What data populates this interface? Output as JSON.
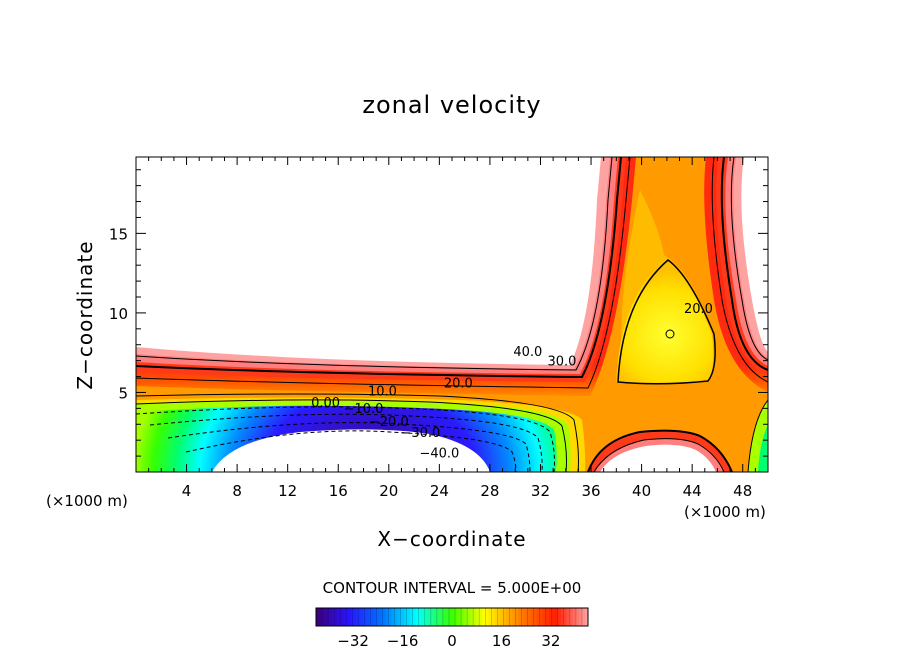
{
  "chart_data": {
    "type": "contour",
    "title": "zonal velocity",
    "xlabel": "X−coordinate",
    "ylabel": "Z−coordinate",
    "x_unit_left": "(×1000 m)",
    "x_unit_right": "(×1000 m)",
    "xlim": [
      0,
      50
    ],
    "ylim": [
      0,
      19.8
    ],
    "xticks": [
      4,
      8,
      12,
      16,
      20,
      24,
      28,
      32,
      36,
      40,
      44,
      48
    ],
    "yticks": [
      5,
      10,
      15
    ],
    "contour_interval_text": "CONTOUR INTERVAL = 5.000E+00",
    "contour_labels": [
      {
        "text": "40.0",
        "x": 31,
        "y": 7.3
      },
      {
        "text": "30.0",
        "x": 33.7,
        "y": 6.7
      },
      {
        "text": "20.0",
        "x": 25.5,
        "y": 5.3
      },
      {
        "text": "10.0",
        "x": 19.5,
        "y": 4.8
      },
      {
        "text": "0.00",
        "x": 15,
        "y": 4.1
      },
      {
        "text": "−10.0",
        "x": 18,
        "y": 3.7
      },
      {
        "text": "−20.0",
        "x": 20,
        "y": 2.9
      },
      {
        "text": "−30.0",
        "x": 22.5,
        "y": 2.2
      },
      {
        "text": "−40.0",
        "x": 24,
        "y": 0.9
      },
      {
        "text": "20.0",
        "x": 44.5,
        "y": 10
      }
    ],
    "colorbar": {
      "range": [
        -44,
        44
      ],
      "ticks": [
        -32,
        -16,
        0,
        16,
        32
      ],
      "tick_labels": [
        "−32",
        "−16",
        "0",
        "16",
        "32"
      ]
    }
  },
  "colors": {
    "max": "#ffa2a2",
    "red": "#ff1c00",
    "orange": "#ff8000",
    "yellow": "#ffff00",
    "green": "#39ff00",
    "cyan": "#00ffff",
    "blue": "#0050ff",
    "min": "#3c0078"
  }
}
